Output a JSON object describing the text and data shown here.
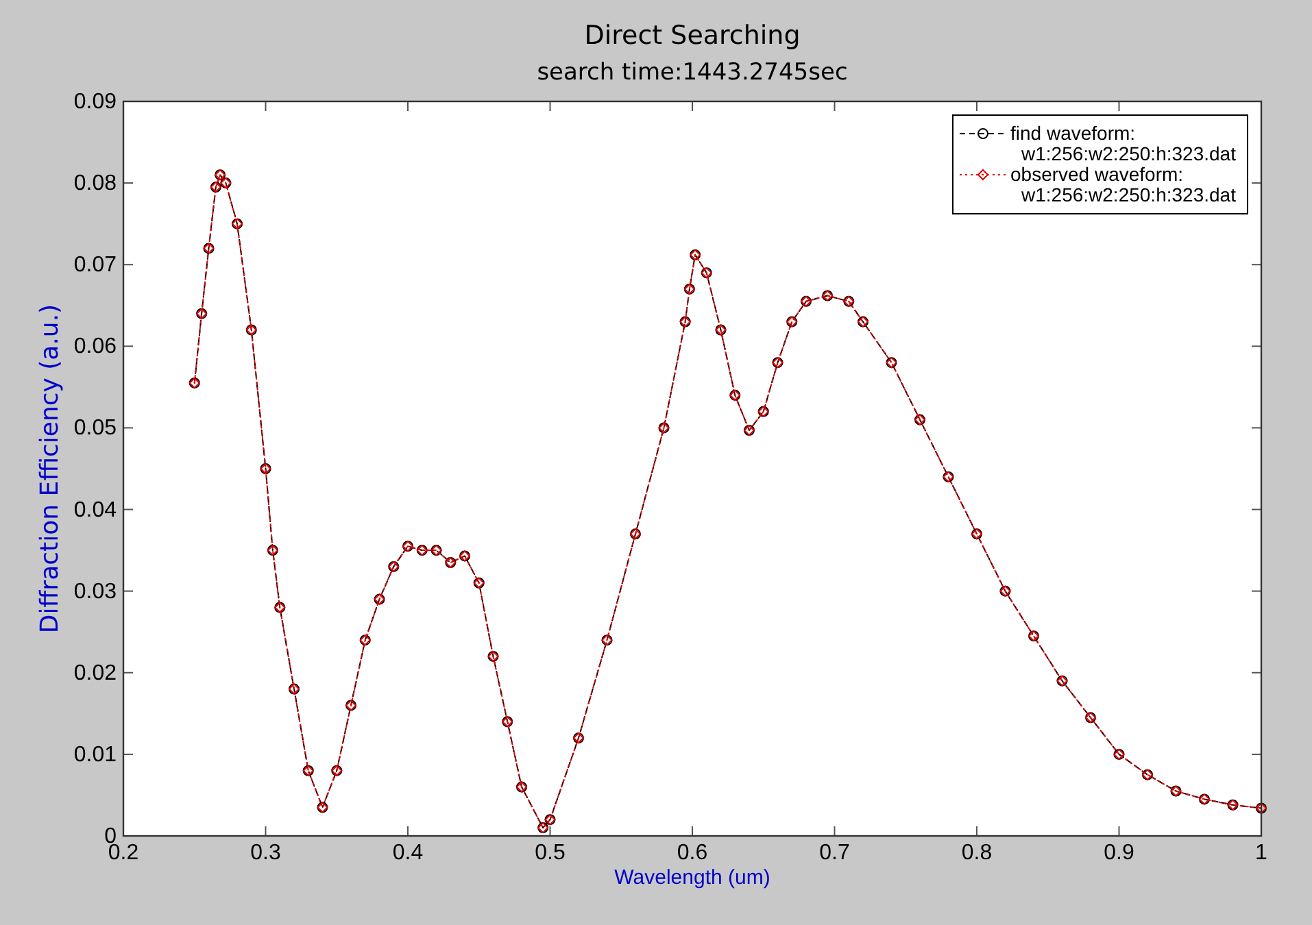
{
  "chart_data": {
    "type": "line",
    "title": "Direct  Searching",
    "subtitle": "search time:1443.2745sec",
    "xlabel": "Wavelength (um)",
    "ylabel": "Diffraction Efficiency (a.u.)",
    "x": [
      0.25,
      0.255,
      0.26,
      0.265,
      0.268,
      0.272,
      0.28,
      0.29,
      0.3,
      0.305,
      0.31,
      0.32,
      0.33,
      0.34,
      0.35,
      0.36,
      0.37,
      0.38,
      0.39,
      0.4,
      0.41,
      0.42,
      0.43,
      0.44,
      0.45,
      0.46,
      0.47,
      0.48,
      0.495,
      0.5,
      0.52,
      0.54,
      0.56,
      0.58,
      0.595,
      0.598,
      0.602,
      0.61,
      0.62,
      0.63,
      0.64,
      0.65,
      0.66,
      0.67,
      0.68,
      0.695,
      0.71,
      0.72,
      0.74,
      0.76,
      0.78,
      0.8,
      0.82,
      0.84,
      0.86,
      0.88,
      0.9,
      0.92,
      0.94,
      0.96,
      0.98,
      1.0
    ],
    "series": [
      {
        "name": "find waveform:\nw1:256:w2:250:h:323.dat",
        "color": "#000000",
        "marker": "circle",
        "line_style": "dashed",
        "values": [
          0.0555,
          0.064,
          0.072,
          0.0795,
          0.081,
          0.08,
          0.075,
          0.062,
          0.045,
          0.035,
          0.028,
          0.018,
          0.008,
          0.0035,
          0.008,
          0.016,
          0.024,
          0.029,
          0.033,
          0.0355,
          0.035,
          0.035,
          0.0335,
          0.0343,
          0.031,
          0.022,
          0.014,
          0.006,
          0.001,
          0.002,
          0.012,
          0.024,
          0.037,
          0.05,
          0.063,
          0.067,
          0.0712,
          0.069,
          0.062,
          0.054,
          0.0497,
          0.052,
          0.058,
          0.063,
          0.0655,
          0.0662,
          0.0655,
          0.063,
          0.058,
          0.051,
          0.044,
          0.037,
          0.03,
          0.0245,
          0.019,
          0.0145,
          0.01,
          0.0075,
          0.0055,
          0.0045,
          0.0038,
          0.0034
        ]
      },
      {
        "name": "observed waveform:\nw1:256:w2:250:h:323.dat",
        "color": "#e00000",
        "marker": "diamond",
        "line_style": "dotted",
        "values": [
          0.0555,
          0.064,
          0.072,
          0.0795,
          0.081,
          0.08,
          0.075,
          0.062,
          0.045,
          0.035,
          0.028,
          0.018,
          0.008,
          0.0035,
          0.008,
          0.016,
          0.024,
          0.029,
          0.033,
          0.0355,
          0.035,
          0.035,
          0.0335,
          0.0343,
          0.031,
          0.022,
          0.014,
          0.006,
          0.001,
          0.002,
          0.012,
          0.024,
          0.037,
          0.05,
          0.063,
          0.067,
          0.0712,
          0.069,
          0.062,
          0.054,
          0.0497,
          0.052,
          0.058,
          0.063,
          0.0655,
          0.0662,
          0.0655,
          0.063,
          0.058,
          0.051,
          0.044,
          0.037,
          0.03,
          0.0245,
          0.019,
          0.0145,
          0.01,
          0.0075,
          0.0055,
          0.0045,
          0.0038,
          0.0034
        ]
      }
    ],
    "xlim": [
      0.2,
      1.0
    ],
    "xticks": [
      0.2,
      0.3,
      0.4,
      0.5,
      0.6,
      0.7,
      0.8,
      0.9,
      1
    ],
    "ylim": [
      0,
      0.09
    ],
    "yticks": [
      0,
      0.01,
      0.02,
      0.03,
      0.04,
      0.05,
      0.06,
      0.07,
      0.08,
      0.09
    ],
    "grid": false,
    "legend": "top right"
  }
}
